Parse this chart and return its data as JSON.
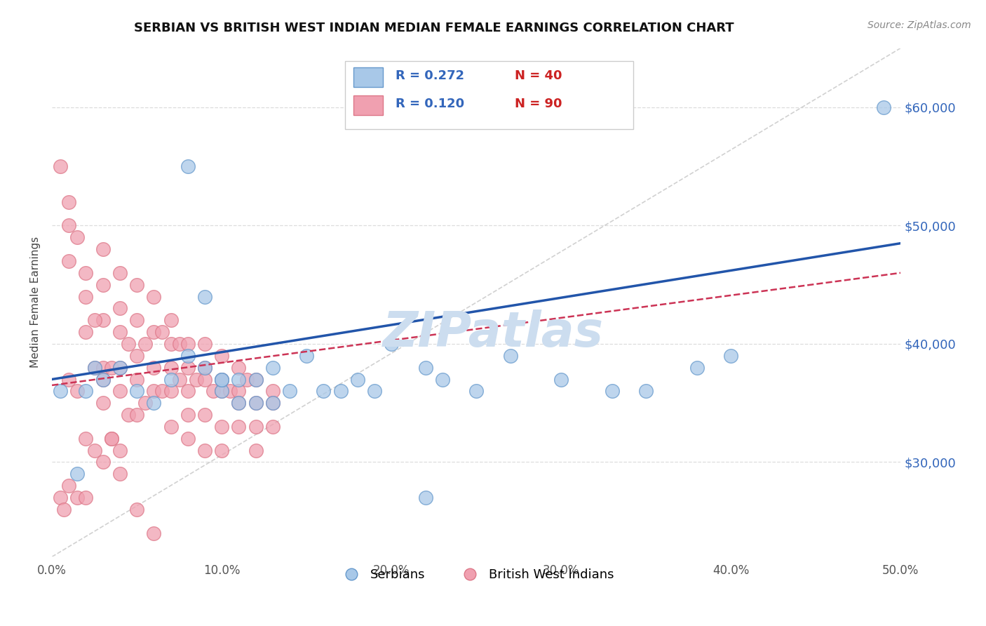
{
  "title": "SERBIAN VS BRITISH WEST INDIAN MEDIAN FEMALE EARNINGS CORRELATION CHART",
  "source": "Source: ZipAtlas.com",
  "ylabel": "Median Female Earnings",
  "xlim": [
    0.0,
    0.5
  ],
  "ylim": [
    22000,
    65000
  ],
  "yticks": [
    30000,
    40000,
    50000,
    60000
  ],
  "ytick_labels": [
    "$30,000",
    "$40,000",
    "$50,000",
    "$60,000"
  ],
  "xticks": [
    0.0,
    0.1,
    0.2,
    0.3,
    0.4,
    0.5
  ],
  "xtick_labels": [
    "0.0%",
    "10.0%",
    "20.0%",
    "30.0%",
    "40.0%",
    "50.0%"
  ],
  "serbian_color": "#a8c8e8",
  "bwi_color": "#f0a0b0",
  "serbian_edge": "#6699cc",
  "bwi_edge": "#dd7788",
  "serbian_R": 0.272,
  "serbian_N": 40,
  "bwi_R": 0.12,
  "bwi_N": 90,
  "regression_blue_color": "#2255aa",
  "regression_pink_color": "#cc3355",
  "diag_line_color": "#cccccc",
  "watermark": "ZIPatlas",
  "watermark_color": "#ccddef",
  "legend_serbian": "Serbians",
  "legend_bwi": "British West Indians",
  "label_color": "#3366bb",
  "N_color": "#cc2222",
  "serbian_x": [
    0.005,
    0.015,
    0.02,
    0.025,
    0.03,
    0.04,
    0.05,
    0.06,
    0.07,
    0.08,
    0.09,
    0.1,
    0.1,
    0.11,
    0.12,
    0.13,
    0.14,
    0.15,
    0.16,
    0.17,
    0.18,
    0.19,
    0.2,
    0.22,
    0.23,
    0.25,
    0.27,
    0.3,
    0.33,
    0.35,
    0.38,
    0.4,
    0.22,
    0.08,
    0.09,
    0.1,
    0.11,
    0.12,
    0.13,
    0.49
  ],
  "serbian_y": [
    36000,
    29000,
    36000,
    38000,
    37000,
    38000,
    36000,
    35000,
    37000,
    39000,
    38000,
    36000,
    37000,
    35000,
    37000,
    38000,
    36000,
    39000,
    36000,
    36000,
    37000,
    36000,
    40000,
    38000,
    37000,
    36000,
    39000,
    37000,
    36000,
    36000,
    38000,
    39000,
    27000,
    55000,
    44000,
    37000,
    37000,
    35000,
    35000,
    60000
  ],
  "bwi_x": [
    0.005,
    0.007,
    0.01,
    0.01,
    0.01,
    0.01,
    0.015,
    0.015,
    0.02,
    0.02,
    0.02,
    0.02,
    0.025,
    0.025,
    0.03,
    0.03,
    0.03,
    0.03,
    0.03,
    0.03,
    0.035,
    0.035,
    0.04,
    0.04,
    0.04,
    0.04,
    0.04,
    0.04,
    0.045,
    0.045,
    0.05,
    0.05,
    0.05,
    0.05,
    0.05,
    0.055,
    0.055,
    0.06,
    0.06,
    0.06,
    0.06,
    0.065,
    0.065,
    0.07,
    0.07,
    0.07,
    0.07,
    0.07,
    0.075,
    0.075,
    0.08,
    0.08,
    0.08,
    0.08,
    0.08,
    0.085,
    0.09,
    0.09,
    0.09,
    0.09,
    0.09,
    0.095,
    0.1,
    0.1,
    0.1,
    0.1,
    0.1,
    0.105,
    0.11,
    0.11,
    0.11,
    0.11,
    0.115,
    0.12,
    0.12,
    0.12,
    0.12,
    0.13,
    0.13,
    0.13,
    0.005,
    0.01,
    0.015,
    0.02,
    0.025,
    0.03,
    0.035,
    0.04,
    0.05,
    0.06
  ],
  "bwi_y": [
    27000,
    26000,
    50000,
    47000,
    37000,
    28000,
    36000,
    27000,
    44000,
    41000,
    32000,
    27000,
    38000,
    31000,
    48000,
    45000,
    42000,
    38000,
    35000,
    30000,
    38000,
    32000,
    46000,
    43000,
    41000,
    38000,
    36000,
    31000,
    40000,
    34000,
    45000,
    42000,
    39000,
    37000,
    34000,
    40000,
    35000,
    44000,
    41000,
    38000,
    36000,
    41000,
    36000,
    42000,
    40000,
    38000,
    36000,
    33000,
    40000,
    37000,
    40000,
    38000,
    36000,
    34000,
    32000,
    37000,
    40000,
    38000,
    37000,
    34000,
    31000,
    36000,
    39000,
    37000,
    36000,
    33000,
    31000,
    36000,
    38000,
    36000,
    35000,
    33000,
    37000,
    37000,
    35000,
    33000,
    31000,
    36000,
    35000,
    33000,
    55000,
    52000,
    49000,
    46000,
    42000,
    37000,
    32000,
    29000,
    26000,
    24000
  ]
}
